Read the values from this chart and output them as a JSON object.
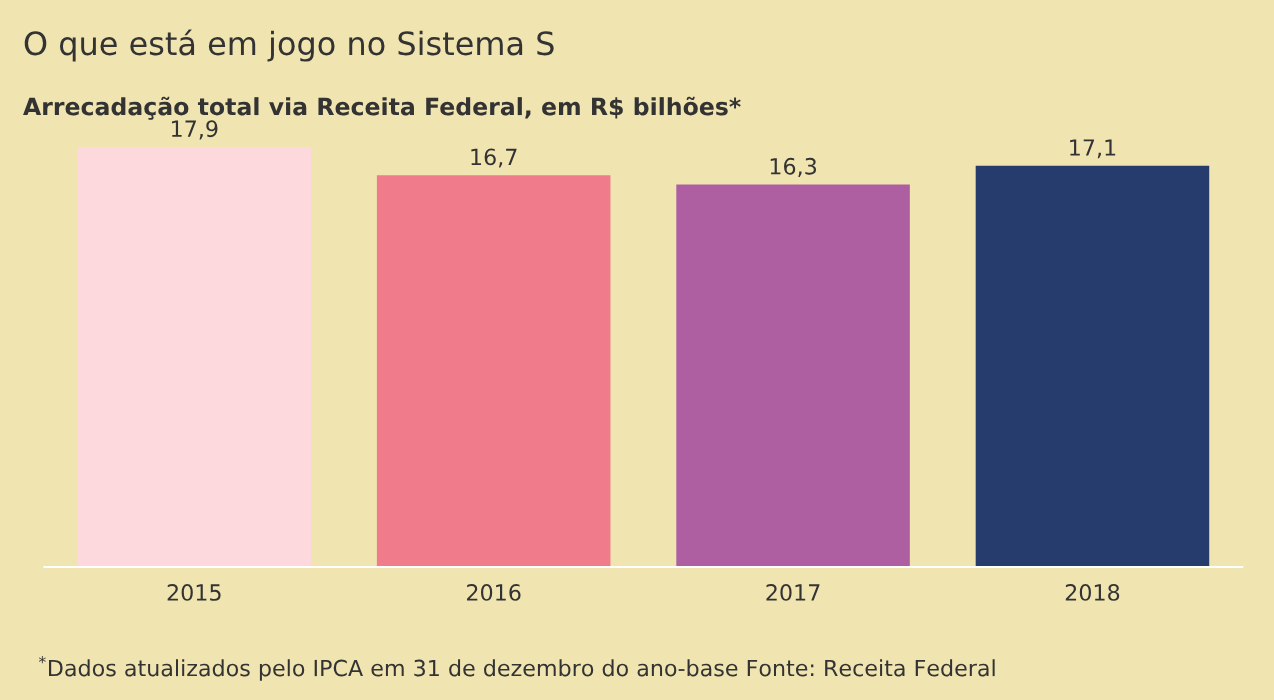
{
  "chart_data": {
    "type": "bar",
    "title": "O que está em jogo no Sistema S",
    "subtitle": "Arrecadação total via Receita Federal, em R$ bilhões*",
    "categories": [
      "2015",
      "2016",
      "2017",
      "2018"
    ],
    "values": [
      17.9,
      16.7,
      16.3,
      17.1
    ],
    "colors": [
      "#fdd9dd",
      "#ef7b8b",
      "#ad5fa2",
      "#253c6c"
    ],
    "value_labels": [
      "17,9",
      "16,7",
      "16,3",
      "17,1"
    ],
    "annotations": [
      "$^{*}$Dados atualizados pelo IPCA em 31 de dezembro do ano-base Fonte: Receita Federal"
    ],
    "grid": false,
    "legend": false
  }
}
